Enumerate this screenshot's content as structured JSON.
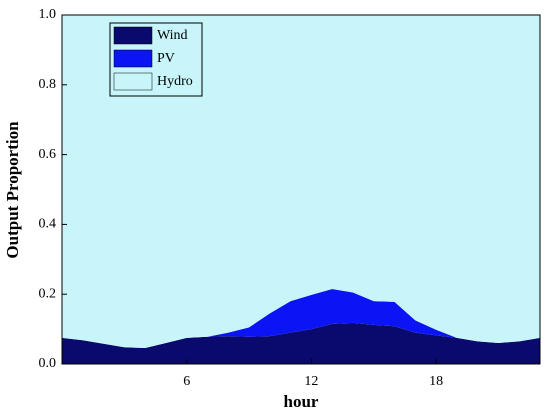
{
  "chart_data": {
    "type": "stacked-area",
    "x_label": "hour",
    "y_label": "Output Proportion",
    "x": [
      0,
      1,
      2,
      3,
      4,
      5,
      6,
      7,
      8,
      9,
      10,
      11,
      12,
      13,
      14,
      15,
      16,
      17,
      18,
      19,
      20,
      21,
      22,
      23
    ],
    "series": [
      {
        "name": "Wind",
        "color": "#0a0a6e",
        "values": [
          0.075,
          0.068,
          0.058,
          0.048,
          0.046,
          0.06,
          0.075,
          0.078,
          0.08,
          0.078,
          0.08,
          0.09,
          0.1,
          0.115,
          0.118,
          0.112,
          0.108,
          0.09,
          0.082,
          0.075,
          0.065,
          0.06,
          0.065,
          0.075
        ]
      },
      {
        "name": "PV",
        "color": "#0a14f5",
        "values": [
          0,
          0,
          0,
          0,
          0,
          0,
          0,
          0,
          0.01,
          0.027,
          0.065,
          0.09,
          0.098,
          0.1,
          0.087,
          0.068,
          0.07,
          0.035,
          0.016,
          0,
          0,
          0,
          0,
          0
        ]
      },
      {
        "name": "Hydro",
        "color": "#c8f5fa",
        "values": [
          0.925,
          0.932,
          0.942,
          0.952,
          0.954,
          0.94,
          0.925,
          0.922,
          0.91,
          0.895,
          0.855,
          0.82,
          0.802,
          0.785,
          0.795,
          0.82,
          0.822,
          0.875,
          0.902,
          0.925,
          0.935,
          0.94,
          0.935,
          0.925
        ]
      }
    ],
    "xlim": [
      0,
      23
    ],
    "xticks": [
      6,
      12,
      18
    ],
    "ylim": [
      0,
      1
    ],
    "yticks": [
      {
        "value": 0,
        "label": "0.0"
      },
      {
        "value": 0.2,
        "label": "0.2"
      },
      {
        "value": 0.4,
        "label": "0.4"
      },
      {
        "value": 0.6,
        "label": "0.6"
      },
      {
        "value": 0.8,
        "label": "0.8"
      },
      {
        "value": 1,
        "label": "1.0"
      }
    ],
    "legend": "upper left"
  }
}
